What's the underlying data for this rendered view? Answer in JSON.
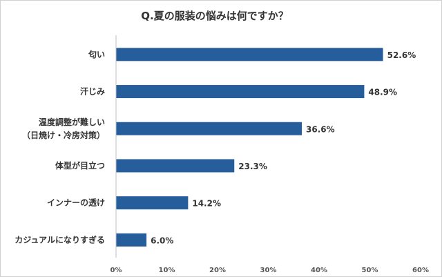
{
  "chart_data": {
    "type": "bar",
    "orientation": "horizontal",
    "title": "Q.夏の服装の悩みは何ですか？",
    "categories": [
      [
        "匂い"
      ],
      [
        "汗じみ"
      ],
      [
        "温度調整が難しい",
        "（日焼け・冷房対策）"
      ],
      [
        "体型が目立つ"
      ],
      [
        "インナーの透け"
      ],
      [
        "カジュアルになりすぎる"
      ]
    ],
    "values": [
      52.6,
      48.9,
      36.6,
      23.3,
      14.2,
      6.0
    ],
    "value_labels": [
      "52.6%",
      "48.9%",
      "36.6%",
      "23.3%",
      "14.2%",
      "6.0%"
    ],
    "xlim": [
      0,
      60
    ],
    "xticks": [
      0,
      10,
      20,
      30,
      40,
      50,
      60
    ],
    "xtick_labels": [
      "0%",
      "10%",
      "20%",
      "30%",
      "40%",
      "50%",
      "60%"
    ],
    "bar_color": "#255e9b",
    "grid": false,
    "legend": "none"
  }
}
